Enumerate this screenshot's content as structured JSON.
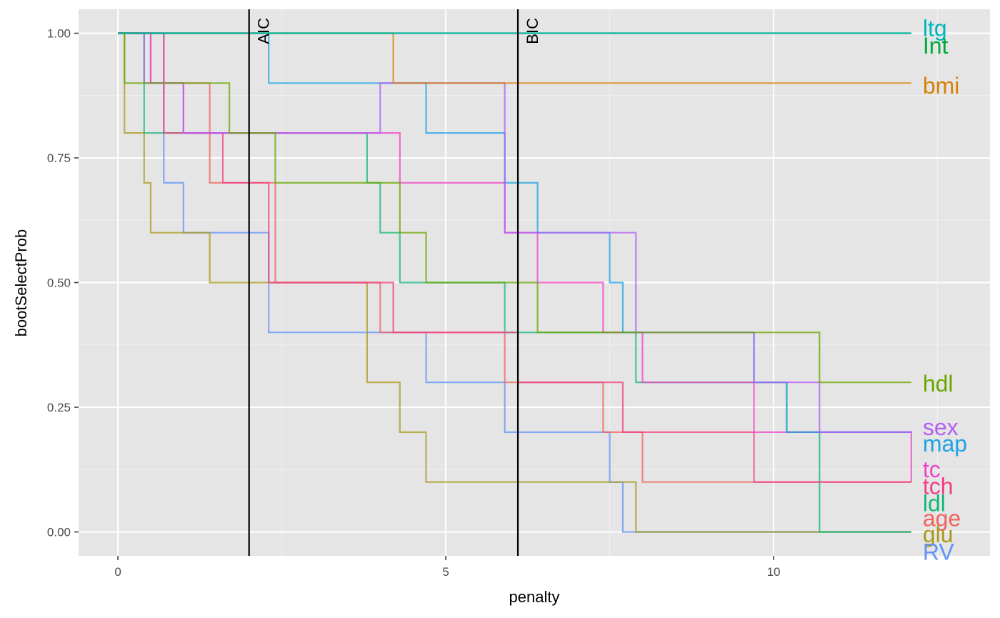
{
  "chart_data": {
    "type": "line",
    "step": true,
    "xlabel": "penalty",
    "ylabel": "bootSelectProb",
    "xlim": [
      -0.6,
      13.3
    ],
    "ylim": [
      -0.048,
      1.048
    ],
    "x_ticks": [
      0,
      5,
      10
    ],
    "x_tick_labels": [
      "0",
      "5",
      "10"
    ],
    "y_ticks": [
      0,
      0.25,
      0.5,
      0.75,
      1.0
    ],
    "y_tick_labels": [
      "0.00",
      "0.25",
      "0.50",
      "0.75",
      "1.00"
    ],
    "grid": true,
    "legend": "direct labels at right end of lines",
    "vlines": [
      {
        "x": 2.0,
        "label": "AIC"
      },
      {
        "x": 6.1,
        "label": "BIC"
      }
    ],
    "series": [
      {
        "name": "ltg",
        "color": "#00B5B8",
        "x": [
          0,
          12.1
        ],
        "y": [
          1.0,
          1.0
        ],
        "label_y": 1.01
      },
      {
        "name": "Int",
        "color": "#00AA3C",
        "x": [
          0,
          12.1
        ],
        "y": [
          1.0,
          1.0
        ],
        "label_y": 0.975
      },
      {
        "name": "bmi",
        "color": "#D7800A",
        "x": [
          0,
          4.2,
          12.1
        ],
        "y": [
          1.0,
          0.9,
          0.9
        ],
        "label_y": 0.895
      },
      {
        "name": "hdl",
        "color": "#6AA700",
        "x": [
          0,
          0.1,
          1.7,
          2.4,
          4.3,
          4.7,
          6.4,
          10.7,
          12.1
        ],
        "y": [
          1.0,
          0.9,
          0.8,
          0.7,
          0.6,
          0.5,
          0.4,
          0.3,
          0.3
        ],
        "label_y": 0.297
      },
      {
        "name": "sex",
        "color": "#B35DF5",
        "x": [
          0,
          0.4,
          1.0,
          1.4,
          4.0,
          5.9,
          7.9,
          9.7,
          10.7,
          12.1
        ],
        "y": [
          1.0,
          0.9,
          0.8,
          0.8,
          0.9,
          0.6,
          0.4,
          0.3,
          0.2,
          0.2
        ],
        "label_y": 0.21
      },
      {
        "name": "map",
        "color": "#1FA3E6",
        "x": [
          0,
          2.3,
          4.7,
          5.9,
          6.4,
          7.5,
          7.7,
          9.7,
          10.2,
          12.1
        ],
        "y": [
          1.0,
          0.9,
          0.8,
          0.7,
          0.6,
          0.5,
          0.4,
          0.3,
          0.2,
          0.2
        ],
        "label_y": 0.177
      },
      {
        "name": "tc",
        "color": "#F042C8",
        "x": [
          0,
          0.5,
          1.0,
          4.3,
          5.9,
          6.4,
          7.4,
          8.0,
          9.7,
          12.1
        ],
        "y": [
          1.0,
          0.9,
          0.8,
          0.7,
          0.6,
          0.5,
          0.4,
          0.3,
          0.2,
          0.1
        ],
        "label_y": 0.125
      },
      {
        "name": "tch",
        "color": "#F23E86",
        "x": [
          0,
          0.7,
          1.6,
          2.3,
          4.2,
          6.1,
          7.7,
          9.7,
          12.1
        ],
        "y": [
          1.0,
          0.8,
          0.7,
          0.5,
          0.4,
          0.3,
          0.2,
          0.1,
          0.1
        ],
        "label_y": 0.092
      },
      {
        "name": "ldl",
        "color": "#14B877",
        "x": [
          0,
          0.4,
          2.4,
          3.8,
          4.0,
          4.3,
          5.9,
          7.9,
          10.2,
          10.7,
          12.1
        ],
        "y": [
          1.0,
          0.8,
          0.8,
          0.7,
          0.6,
          0.5,
          0.4,
          0.3,
          0.2,
          0.0,
          0.0
        ],
        "label_y": 0.057
      },
      {
        "name": "age",
        "color": "#F0645E",
        "x": [
          0,
          0.5,
          1.4,
          2.4,
          4.0,
          5.9,
          7.4,
          8.0,
          9.7,
          12.1
        ],
        "y": [
          1.0,
          0.9,
          0.7,
          0.5,
          0.4,
          0.3,
          0.2,
          0.1,
          0.1,
          0.1
        ],
        "label_y": 0.027
      },
      {
        "name": "glu",
        "color": "#A89A1C",
        "x": [
          0,
          0.1,
          0.4,
          0.5,
          1.4,
          3.8,
          4.3,
          4.7,
          7.9,
          12.1
        ],
        "y": [
          1.0,
          0.8,
          0.7,
          0.6,
          0.5,
          0.3,
          0.2,
          0.1,
          0.0,
          0.0
        ],
        "label_y": -0.005
      },
      {
        "name": "RV",
        "color": "#6193F8",
        "x": [
          0,
          0.7,
          1.0,
          2.3,
          4.7,
          5.9,
          7.5,
          7.7,
          12.1
        ],
        "y": [
          1.0,
          0.7,
          0.6,
          0.4,
          0.3,
          0.2,
          0.1,
          0.0,
          0.0
        ],
        "label_y": -0.04
      }
    ]
  }
}
